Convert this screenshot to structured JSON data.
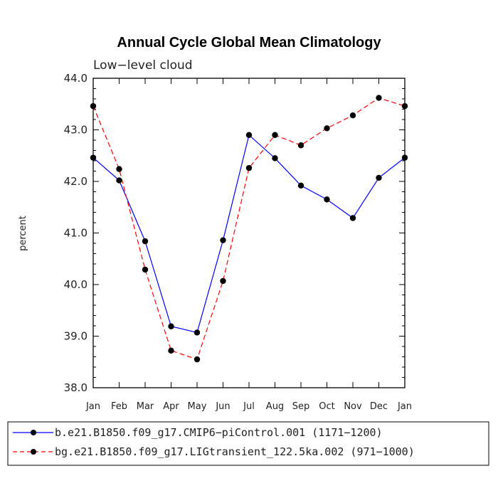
{
  "chart_data": {
    "type": "line",
    "title": "Annual Cycle Global Mean Climatology",
    "subtitle": "Low−level cloud",
    "ylabel": "percent",
    "xlabel": "",
    "categories": [
      "Jan",
      "Feb",
      "Mar",
      "Apr",
      "May",
      "Jun",
      "Jul",
      "Aug",
      "Sep",
      "Oct",
      "Nov",
      "Dec",
      "Jan"
    ],
    "ylim": [
      38.0,
      44.0
    ],
    "yticks": [
      "38.0",
      "39.0",
      "40.0",
      "41.0",
      "42.0",
      "43.0",
      "44.0"
    ],
    "grid": false,
    "legend_position": "bottom",
    "series": [
      {
        "name": "b.e21.B1850.f09_g17.CMIP6−piControl.001 (1171−1200)",
        "color": "#0000ff",
        "dash": "solid",
        "values": [
          42.46,
          42.02,
          40.84,
          39.19,
          39.07,
          40.86,
          42.9,
          42.45,
          41.92,
          41.65,
          41.29,
          42.07,
          42.46
        ]
      },
      {
        "name": "bg.e21.B1850.f09_g17.LIGtransient_122.5ka.002 (971−1000)",
        "color": "#ff0000",
        "dash": "dashed",
        "values": [
          43.46,
          42.24,
          40.29,
          38.72,
          38.55,
          40.07,
          42.26,
          42.9,
          42.7,
          43.03,
          43.28,
          43.62,
          43.46
        ]
      }
    ]
  }
}
